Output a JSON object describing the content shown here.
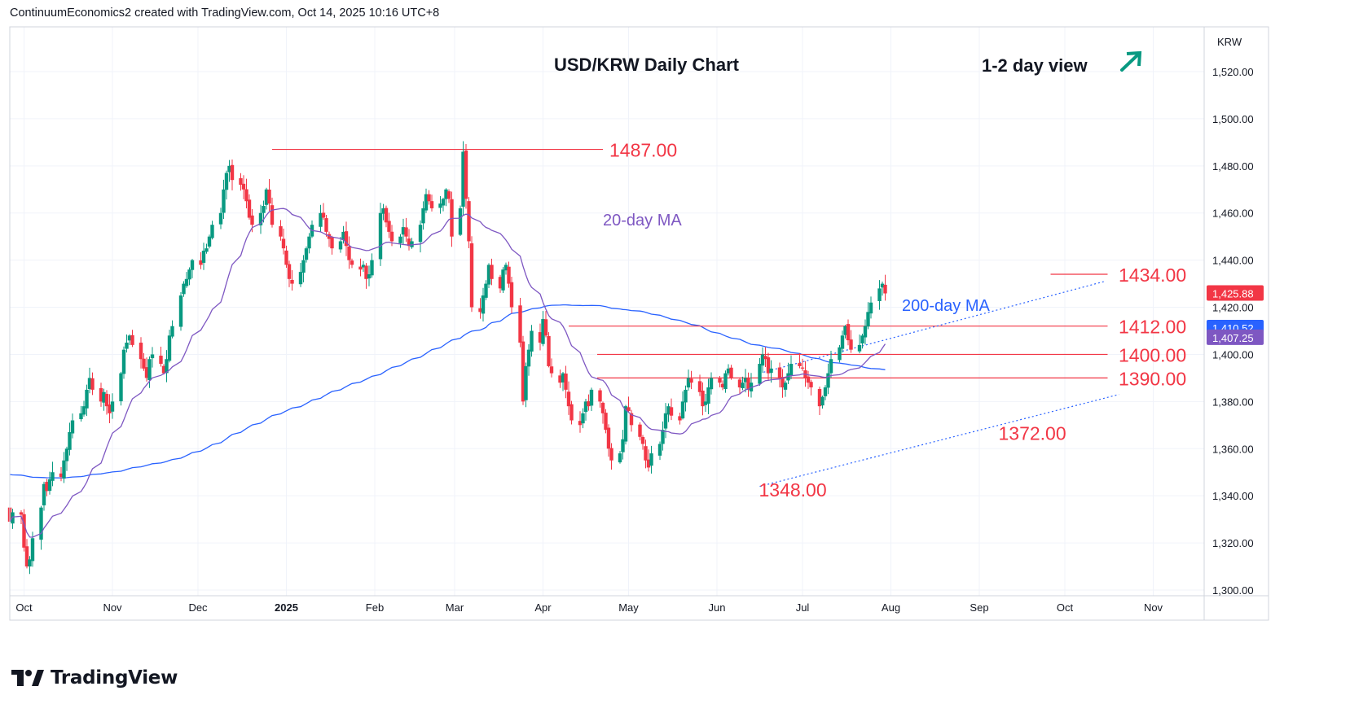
{
  "header": {
    "attribution": "ContinuumEconomics2 created with TradingView.com, Oct 14, 2025 10:16 UTC+8"
  },
  "footer": {
    "brand": "TradingView"
  },
  "colors": {
    "up": "#089981",
    "down": "#f23645",
    "ma20": "#7e57c2",
    "ma200": "#2962ff",
    "level": "#f23645",
    "annotation_red": "#f23645",
    "arrow": "#089981",
    "channel": "#2962ff"
  },
  "chart_data": {
    "type": "candlestick",
    "title": "USD/KRW Daily Chart",
    "subtitle": "1-2 day view",
    "view_direction_icon": "arrow-up-right-icon",
    "price_scale_label": "KRW",
    "ylim": [
      1300,
      1540
    ],
    "y_ticks": [
      "1,300.00",
      "1,320.00",
      "1,340.00",
      "1,360.00",
      "1,380.00",
      "1,400.00",
      "1,420.00",
      "1,440.00",
      "1,460.00",
      "1,480.00",
      "1,500.00",
      "1,520.00"
    ],
    "x_labels": [
      "Oct",
      "Nov",
      "Dec",
      "2025",
      "Feb",
      "Mar",
      "Apr",
      "May",
      "Jun",
      "Jul",
      "Aug",
      "Sep",
      "Oct",
      "Nov"
    ],
    "series": [
      {
        "name": "20-day MA",
        "last": 1407.25
      },
      {
        "name": "200-day MA",
        "last": 1410.52
      }
    ],
    "last_price": 1425.88,
    "price_tags": [
      "1,425.88",
      "1,410.52",
      "1,407.25"
    ],
    "levels": [
      {
        "label": "1487.00",
        "value": 1487,
        "from": "2024-12-27",
        "to": "2025-04-22"
      },
      {
        "label": "1434.00",
        "value": 1434,
        "from": "2025-09-26",
        "to": "2025-10-16"
      },
      {
        "label": "1412.00",
        "value": 1412,
        "from": "2025-04-10",
        "to": "2025-10-16"
      },
      {
        "label": "1400.00",
        "value": 1400,
        "from": "2025-04-20",
        "to": "2025-10-16"
      },
      {
        "label": "1390.00",
        "value": 1390,
        "from": "2025-04-20",
        "to": "2025-10-16"
      }
    ],
    "annotations": [
      {
        "label": "1372.00",
        "date": "2025-09-22",
        "value": 1372
      },
      {
        "label": "1348.00",
        "date": "2025-06-30",
        "value": 1348
      }
    ],
    "channel": {
      "upper": [
        [
          "2025-06-16",
          1392
        ],
        [
          "2025-10-15",
          1431
        ]
      ],
      "lower": [
        [
          "2025-06-16",
          1344
        ],
        [
          "2025-10-20",
          1383
        ]
      ]
    },
    "ohlc_segments": [
      {
        "start": "2024-09-26",
        "closes": [
          1329,
          1333,
          1332,
          1318,
          1310,
          1313,
          1322,
          1335,
          1345,
          1342,
          1347,
          1350,
          1348,
          1355,
          1360,
          1367,
          1372,
          1375,
          1378,
          1385,
          1390,
          1385,
          1380,
          1384,
          1378,
          1375,
          1380,
          1392,
          1402,
          1405,
          1408,
          1404,
          1398,
          1394,
          1390,
          1398,
          1400,
          1396,
          1392,
          1398,
          1408,
          1412,
          1425,
          1430,
          1432,
          1436,
          1440,
          1438,
          1444,
          1445,
          1450,
          1455,
          1460,
          1470,
          1477,
          1480,
          1474,
          1472,
          1470,
          1465,
          1458,
          1455,
          1460,
          1463,
          1470,
          1464,
          1455,
          1450,
          1445,
          1438,
          1432,
          1430,
          1435,
          1440,
          1445,
          1450,
          1455,
          1460,
          1458,
          1452,
          1449,
          1445,
          1448,
          1452,
          1446,
          1440,
          1438,
          1436,
          1438,
          1432,
          1434,
          1440,
          1460,
          1462,
          1456,
          1452,
          1448,
          1450,
          1454,
          1450,
          1446,
          1448,
          1455,
          1462,
          1468,
          1465,
          1462,
          1464,
          1466,
          1470,
          1466,
          1450,
          1462,
          1486,
          1466,
          1448,
          1420,
          1418,
          1425,
          1430,
          1438,
          1432,
          1428,
          1436,
          1438,
          1430,
          1420,
          1405,
          1380,
          1395,
          1402,
          1410,
          1405,
          1415,
          1408,
          1395,
          1392,
          1388,
          1392,
          1385,
          1378,
          1372,
          1370,
          1375,
          1380,
          1378,
          1385,
          1380,
          1375,
          1368,
          1360,
          1355,
          1358,
          1364,
          1378,
          1376,
          1370,
          1365,
          1362,
          1355,
          1352,
          1358,
          1362,
          1368,
          1375,
          1378,
          1374,
          1372,
          1380,
          1385,
          1390,
          1388,
          1384,
          1378,
          1380,
          1386,
          1390,
          1388,
          1386,
          1392,
          1394,
          1390,
          1386,
          1388,
          1390,
          1385,
          1388,
          1396,
          1400,
          1398,
          1392,
          1394,
          1390,
          1386,
          1388,
          1392,
          1396,
          1395,
          1394,
          1390,
          1388,
          1386,
          1378,
          1382,
          1386,
          1392,
          1398,
          1403,
          1408,
          1412,
          1406,
          1402,
          1404,
          1408,
          1412,
          1418,
          1422,
          1428,
          1430,
          1425.88
        ]
      }
    ]
  }
}
